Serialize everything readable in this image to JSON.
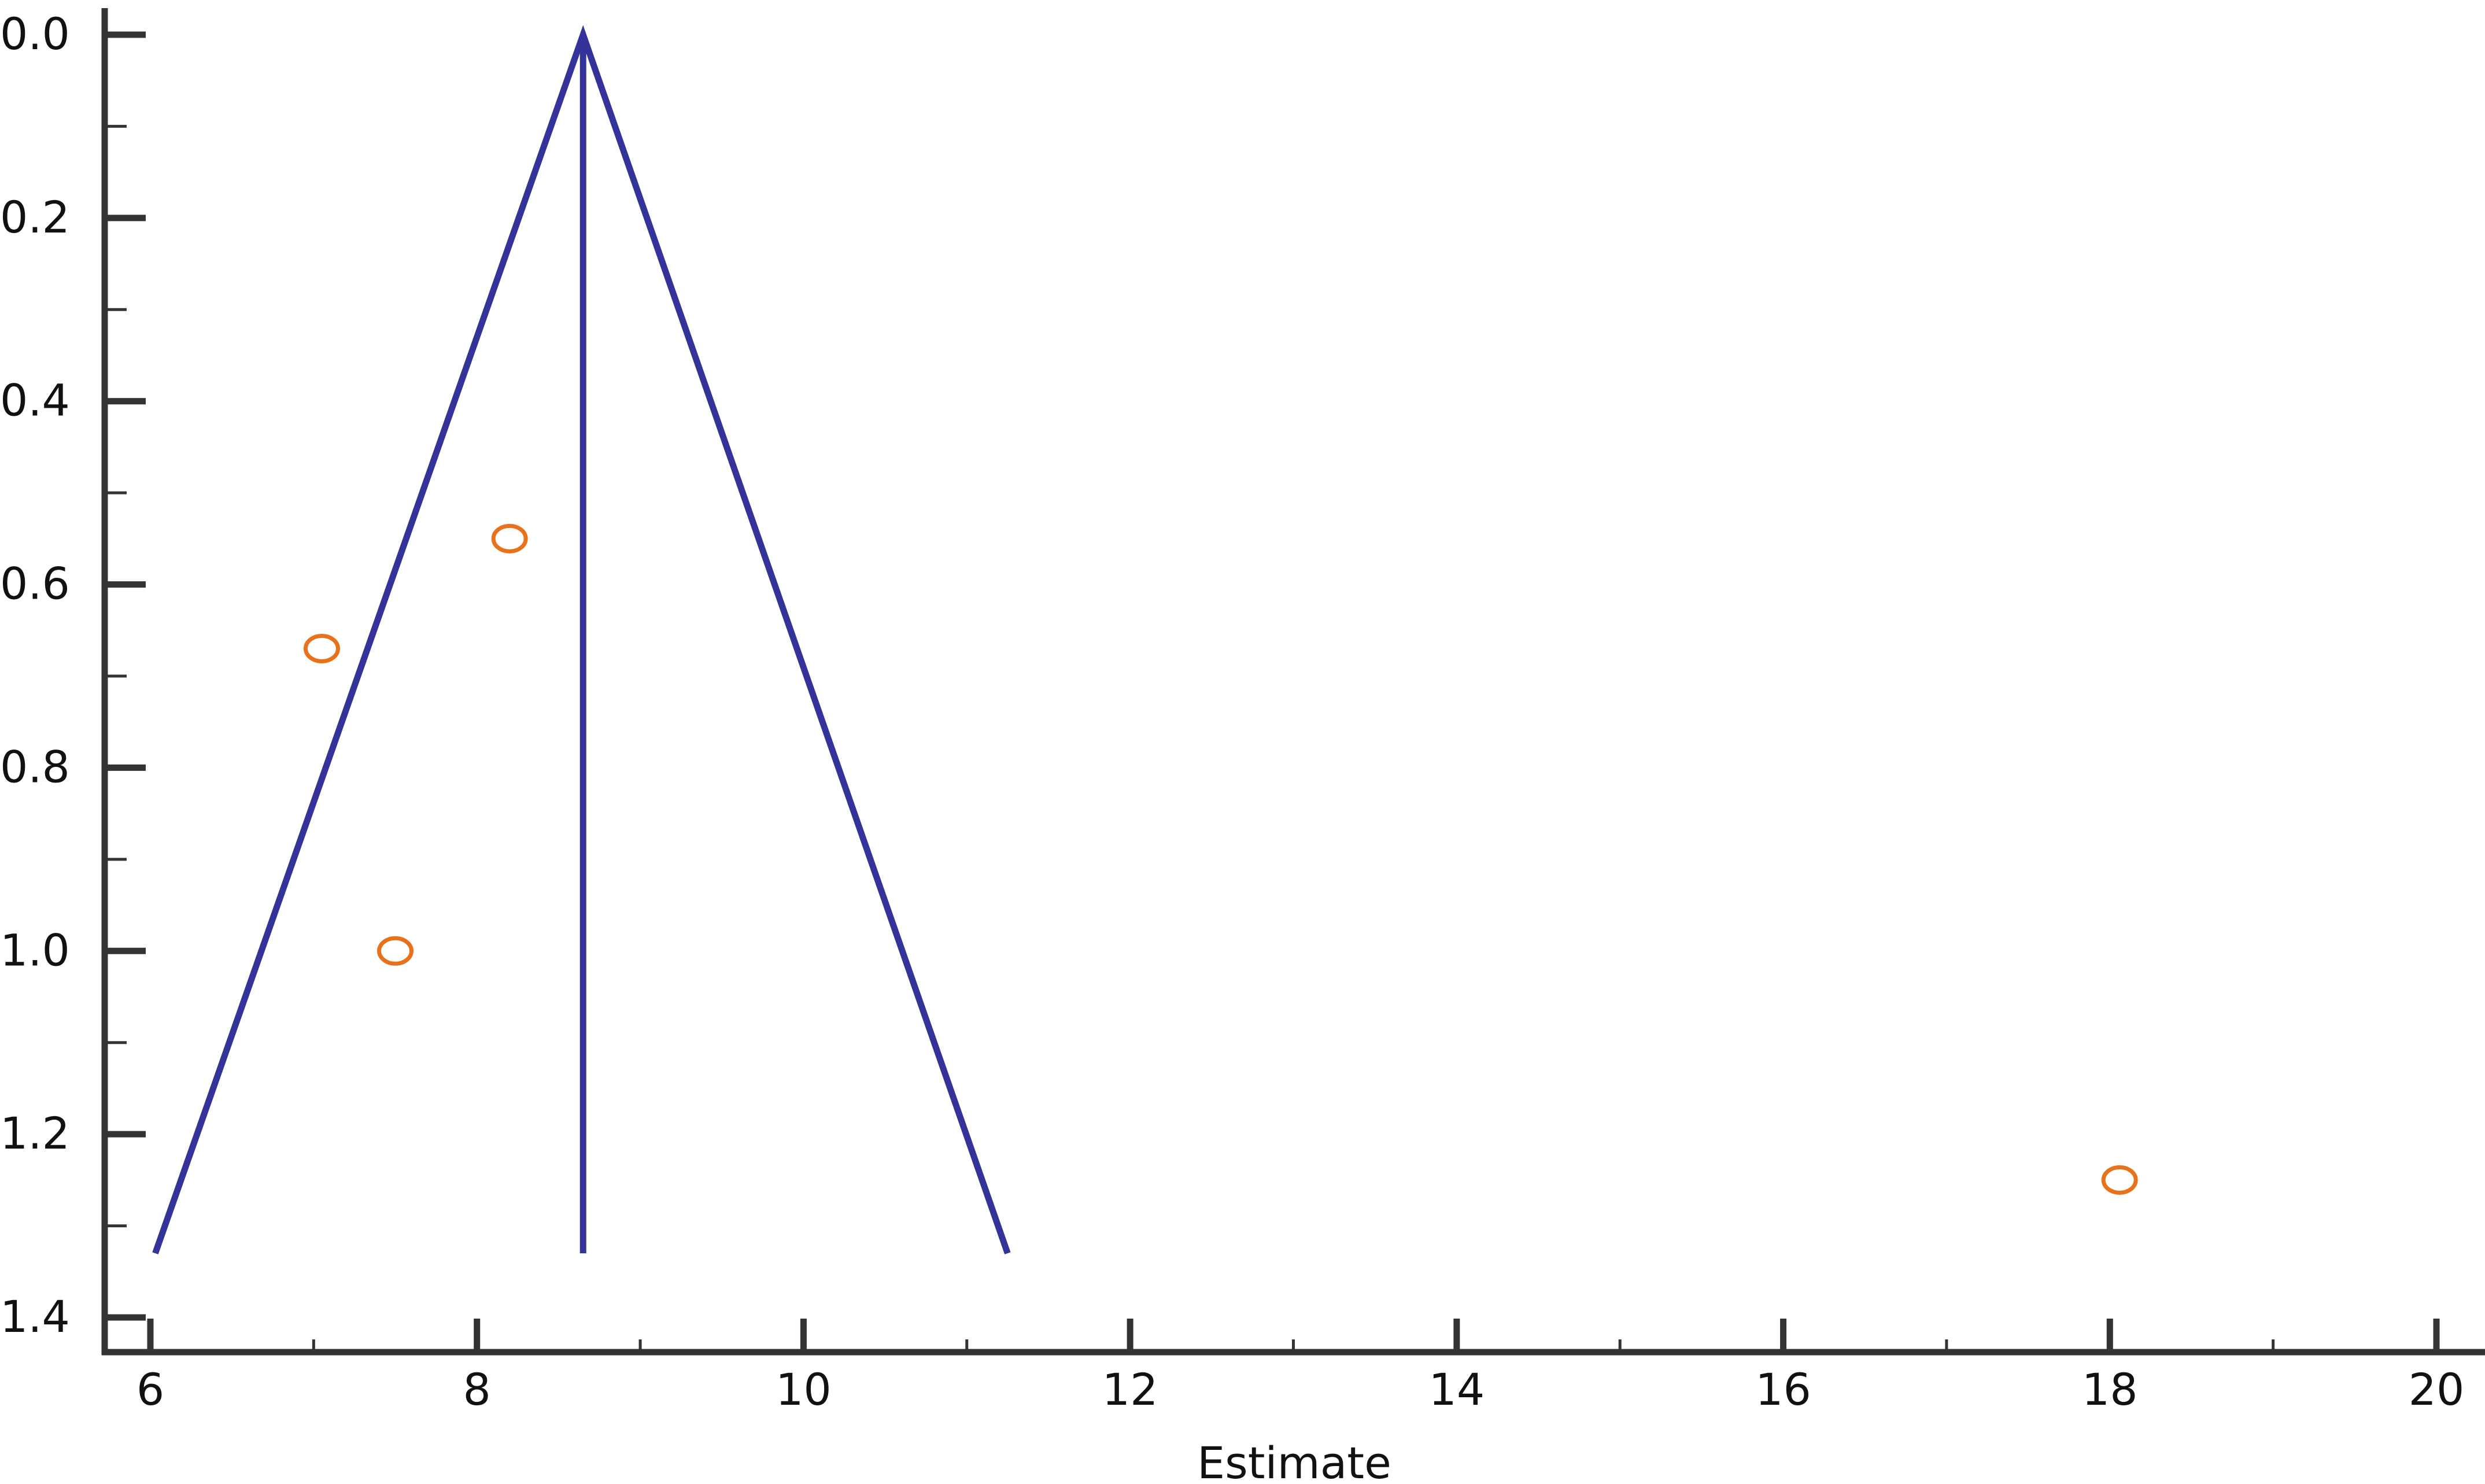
{
  "chart_data": {
    "type": "scatter",
    "xlabel": "Estimate",
    "xlim": [
      6,
      20
    ],
    "xticks": [
      6,
      8,
      10,
      12,
      14,
      16,
      18,
      20
    ],
    "xticks_minor": [
      7,
      9,
      11,
      13,
      15,
      17,
      19
    ],
    "ylim": [
      0,
      1.4
    ],
    "y_inverted": true,
    "yticks": [
      {
        "value": 0,
        "label": "0.0"
      },
      0.2,
      0.4,
      0.6,
      0.8,
      {
        "value": 1,
        "label": "1.0"
      },
      1.2,
      1.4
    ],
    "yticks_minor": [
      0.1,
      0.3,
      0.5,
      0.7,
      0.9,
      1.1,
      1.3
    ],
    "lines": [
      {
        "color": "#333399",
        "x": [
          6.03,
          8.65,
          11.25
        ],
        "y": [
          1.33,
          0,
          1.33
        ]
      },
      {
        "color": "#333399",
        "x": [
          8.65,
          8.65
        ],
        "y": [
          0,
          1.33
        ]
      }
    ],
    "points": {
      "color": "#e8711c",
      "x": [
        8.2,
        7.05,
        7.5,
        18.06
      ],
      "y": [
        0.55,
        0.67,
        1.0,
        1.25
      ]
    }
  }
}
